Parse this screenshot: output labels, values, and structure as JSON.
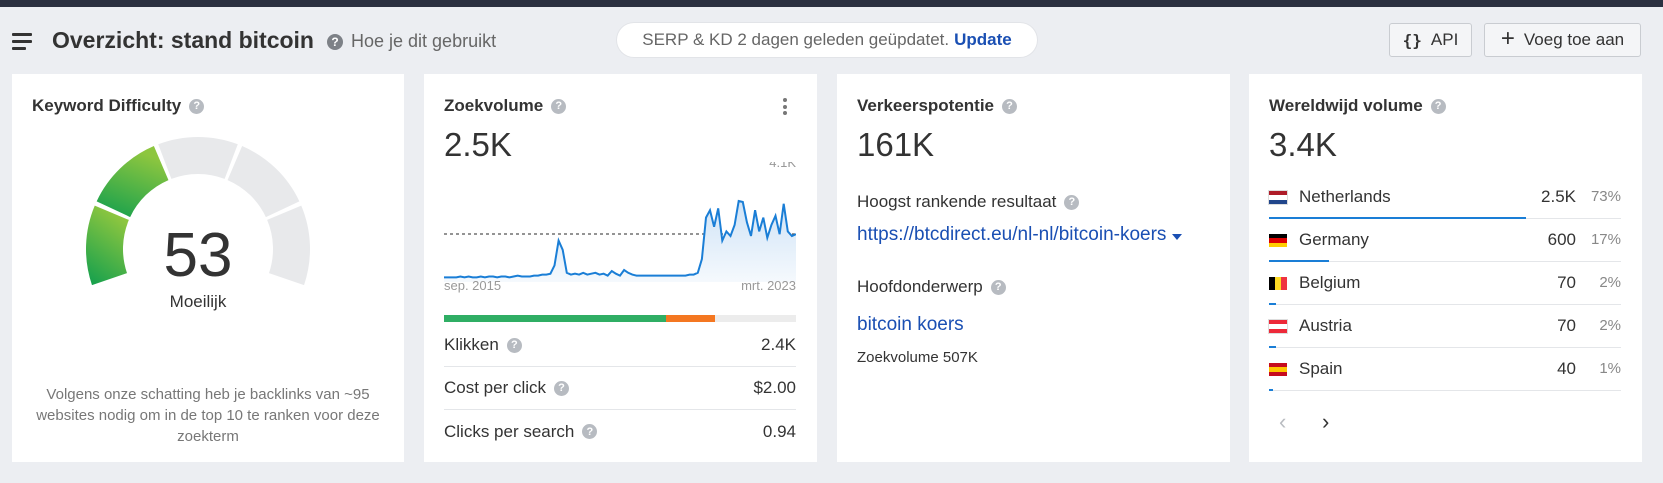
{
  "header": {
    "title": "Overzicht: stand bitcoin",
    "help_label": "Hoe je dit gebruikt",
    "serp_notice": "SERP & KD 2 dagen geleden geüpdatet.",
    "update_label": "Update",
    "api_label": "API",
    "add_label": "Voeg toe aan"
  },
  "keyword_difficulty": {
    "title": "Keyword Difficulty",
    "value": "53",
    "rating": "Moeilijk",
    "gauge_level": 53,
    "note": "Volgens onze schatting heb je backlinks van ~95 websites nodig om in de top 10 te ranken voor deze zoekterm"
  },
  "search_volume": {
    "title": "Zoekvolume",
    "value": "2.5K",
    "chart_max_label": "4.1K",
    "chart_start_label": "sep. 2015",
    "chart_end_label": "mrt. 2023",
    "clicks_split": {
      "organic": 0.63,
      "paid": 0.14
    },
    "metrics": [
      {
        "label": "Klikken",
        "value": "2.4K"
      },
      {
        "label": "Cost per click",
        "value": "$2.00"
      },
      {
        "label": "Clicks per search",
        "value": "0.94"
      }
    ]
  },
  "traffic_potential": {
    "title": "Verkeerspotentie",
    "value": "161K",
    "top_result_label": "Hoogst rankende resultaat",
    "top_result_url": "https://btcdirect.eu/nl-nl/bitcoin-koers",
    "parent_topic_label": "Hoofdonderwerp",
    "parent_topic": "bitcoin koers",
    "parent_topic_volume": "Zoekvolume 507K"
  },
  "global_volume": {
    "title": "Wereldwijd volume",
    "value": "3.4K",
    "countries": [
      {
        "name": "Netherlands",
        "volume": "2.5K",
        "pct": "73%",
        "share": 0.73,
        "flag": [
          "#ae1c28",
          "#ffffff",
          "#21468b"
        ]
      },
      {
        "name": "Germany",
        "volume": "600",
        "pct": "17%",
        "share": 0.17,
        "flag": [
          "#000000",
          "#dd0000",
          "#ffce00"
        ]
      },
      {
        "name": "Belgium",
        "volume": "70",
        "pct": "2%",
        "share": 0.02,
        "flag": [
          "#000000",
          "#fdda24",
          "#ef3340"
        ],
        "vertical": true
      },
      {
        "name": "Austria",
        "volume": "70",
        "pct": "2%",
        "share": 0.02,
        "flag": [
          "#ed2939",
          "#ffffff",
          "#ed2939"
        ]
      },
      {
        "name": "Spain",
        "volume": "40",
        "pct": "1%",
        "share": 0.01,
        "flag": [
          "#c60b1e",
          "#ffc400",
          "#c60b1e"
        ]
      }
    ],
    "prev_label": "‹",
    "next_label": "›"
  }
}
